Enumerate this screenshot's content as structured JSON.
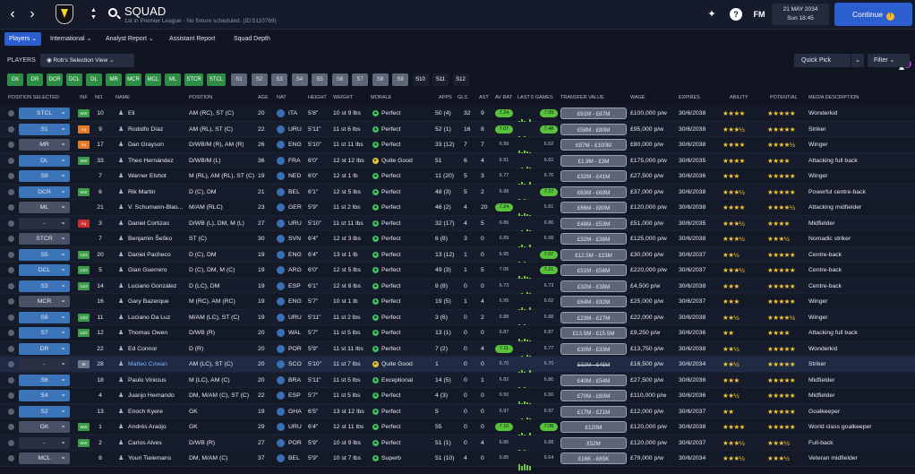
{
  "header": {
    "title": "SQUAD",
    "subtitle": "1st in Premier League - No fixture scheduled. (ID:5110769)",
    "date": "21 MAY 2034",
    "time": "Sun 18:45",
    "fm_label": "FM",
    "continue_label": "Continue",
    "continue_icon": "!"
  },
  "subnav": {
    "tabs": [
      "Players",
      "International",
      "Analyst Report",
      "Assistant Report",
      "Squad Depth"
    ],
    "notification_count": "7"
  },
  "players_bar": {
    "label": "PLAYERS",
    "view_label": "Rob's Selection View",
    "quick_pick": "Quick Pick",
    "filter": "Filter"
  },
  "position_chips": [
    "GK",
    "DR",
    "DCR",
    "DCL",
    "DL",
    "MR",
    "MCR",
    "MCL",
    "ML",
    "STCR",
    "STCL"
  ],
  "tactic_chips": [
    "S1",
    "S2",
    "S3",
    "S4",
    "S5",
    "S6",
    "S7",
    "S8",
    "S9",
    "S10",
    "S11",
    "S12"
  ],
  "columns": {
    "position_selected": "POSITION SELECTED",
    "inf": "INF",
    "no": "NO.",
    "name": "NAME",
    "position": "POSITION",
    "age": "AGE",
    "nat": "NAT",
    "height": "HEIGHT",
    "weight": "WEIGHT",
    "morale": "MORALE",
    "apps": "APPS",
    "gls": "GLS",
    "ast": "AST",
    "av_rat": "AV RAT",
    "last5": "LAST 5 GAMES",
    "transfer_value": "TRANSFER VALUE",
    "wage": "WAGE",
    "expires": "EXPIRES",
    "ability": "ABILITY",
    "potential": "POTENTIAL",
    "media": "MEDIA DESCRIPTION"
  },
  "players": [
    {
      "sel": "STCL",
      "selc": "blue",
      "inf": "Wnt",
      "infc": "wnt",
      "no": "10",
      "name": "Eli",
      "pos": "AM (RC), ST (C)",
      "age": "20",
      "nat": "ITA",
      "h": "5'8\"",
      "w": "10 st 9 lbs",
      "mor": "Perfect",
      "apps": "50 (4)",
      "gls": "32",
      "ast": "9",
      "avr": "7.24",
      "avrg": true,
      "l5": "7.09",
      "l5g": true,
      "tv": "£61M - £87M",
      "wage": "£100,000 p/w",
      "exp": "30/6/2038",
      "ab": "★★★★",
      "pot": "★★★★★"
    },
    {
      "sel": "S1",
      "selc": "blue",
      "inf": "Inj",
      "infc": "inj",
      "no": "9",
      "name": "Rodolfo Díaz",
      "pos": "AM (RL), ST (C)",
      "age": "22",
      "nat": "URU",
      "h": "5'11\"",
      "w": "11 st 6 lbs",
      "mor": "Perfect",
      "apps": "52 (1)",
      "gls": "16",
      "ast": "8",
      "avr": "7.07",
      "avrg": true,
      "l5": "7.48",
      "l5g": true,
      "tv": "£58M - £80M",
      "wage": "£95,000 p/w",
      "exp": "30/6/2038",
      "ab": "★★★½",
      "pot": "★★★★★"
    },
    {
      "sel": "MR",
      "selc": "grey",
      "inf": "Inj",
      "infc": "inj",
      "no": "17",
      "name": "Dan Grayson",
      "pos": "D/WB/M (R), AM (R)",
      "age": "26",
      "nat": "ENG",
      "h": "5'10\"",
      "w": "11 st 11 lbs",
      "mor": "Perfect",
      "apps": "33 (12)",
      "gls": "7",
      "ast": "7",
      "avr": "6.99",
      "avrg": false,
      "l5": "6.62",
      "l5g": false,
      "tv": "£87M - £100M",
      "wage": "£80,000 p/w",
      "exp": "30/6/2038",
      "ab": "★★★★",
      "pot": "★★★★½"
    },
    {
      "sel": "DL",
      "selc": "blue",
      "inf": "Wnt",
      "infc": "wnt",
      "no": "33",
      "name": "Theo Hernández",
      "pos": "D/WB/M (L)",
      "age": "36",
      "nat": "FRA",
      "h": "6'0\"",
      "w": "12 st 12 lbs",
      "mor": "Quite Good",
      "apps": "51",
      "gls": "6",
      "ast": "4",
      "avr": "6.91",
      "avrg": false,
      "l5": "6.62",
      "l5g": false,
      "tv": "£1.9M - £3M",
      "wage": "£175,000 p/w",
      "exp": "30/6/2035",
      "ab": "★★★★",
      "pot": "★★★★"
    },
    {
      "sel": "S9",
      "selc": "blue",
      "inf": "",
      "infc": "",
      "no": "7",
      "name": "Warner Elshot",
      "pos": "M (RL), AM (RL), ST (C)",
      "age": "19",
      "nat": "NED",
      "h": "6'0\"",
      "w": "12 st 1 lb",
      "mor": "Perfect",
      "apps": "11 (20)",
      "gls": "5",
      "ast": "3",
      "avr": "6.77",
      "avrg": false,
      "l5": "6.76",
      "l5g": false,
      "tv": "£32M - £41M",
      "wage": "£27,500 p/w",
      "exp": "30/6/2036",
      "ab": "★★★",
      "pot": "★★★★★"
    },
    {
      "sel": "DCR",
      "selc": "blue",
      "inf": "Wnt",
      "infc": "wnt",
      "no": "6",
      "name": "Rik Martin",
      "pos": "D (C), DM",
      "age": "21",
      "nat": "BEL",
      "h": "6'1\"",
      "w": "12 st 5 lbs",
      "mor": "Perfect",
      "apps": "48 (3)",
      "gls": "5",
      "ast": "2",
      "avr": "6.98",
      "avrg": false,
      "l5": "7.27",
      "l5g": true,
      "tv": "£63M - £69M",
      "wage": "£37,000 p/w",
      "exp": "30/6/2038",
      "ab": "★★★½",
      "pot": "★★★★★"
    },
    {
      "sel": "ML",
      "selc": "grey",
      "inf": "",
      "infc": "",
      "no": "21",
      "name": "V. Schumann-Blas...",
      "pos": "M/AM (RLC)",
      "age": "23",
      "nat": "GER",
      "h": "5'9\"",
      "w": "11 st 2 lbs",
      "mor": "Perfect",
      "apps": "46 (2)",
      "gls": "4",
      "ast": "20",
      "avr": "7.24",
      "avrg": true,
      "l5": "6.81",
      "l5g": false,
      "tv": "£66M - £80M",
      "wage": "£120,000 p/w",
      "exp": "30/6/2038",
      "ab": "★★★★",
      "pot": "★★★★½"
    },
    {
      "sel": "-",
      "selc": "none",
      "inf": "Inj",
      "infc": "sus",
      "no": "3",
      "name": "Daniel Cortizas",
      "pos": "D/WB (L), DM, M (L)",
      "age": "27",
      "nat": "URU",
      "h": "5'10\"",
      "w": "11 st 11 lbs",
      "mor": "Perfect",
      "apps": "32 (17)",
      "gls": "4",
      "ast": "5",
      "avr": "6.86",
      "avrg": false,
      "l5": "6.86",
      "l5g": false,
      "tv": "£48M - £53M",
      "wage": "£51,000 p/w",
      "exp": "30/6/2035",
      "ab": "★★★½",
      "pot": "★★★★"
    },
    {
      "sel": "STCR",
      "selc": "grey",
      "inf": "",
      "infc": "",
      "no": "7",
      "name": "Benjamin Šeško",
      "pos": "ST (C)",
      "age": "30",
      "nat": "SVN",
      "h": "6'4\"",
      "w": "12 st 3 lbs",
      "mor": "Perfect",
      "apps": "6 (8)",
      "gls": "3",
      "ast": "0",
      "avr": "6.89",
      "avrg": false,
      "l5": "6.98",
      "l5g": false,
      "tv": "£32M - £38M",
      "wage": "£125,000 p/w",
      "exp": "30/6/2038",
      "ab": "★★★½",
      "pot": "★★★½"
    },
    {
      "sel": "S5",
      "selc": "blue",
      "inf": "U23",
      "infc": "u",
      "no": "20",
      "name": "Daniel Pacheco",
      "pos": "D (C), DM",
      "age": "19",
      "nat": "ENG",
      "h": "6'4\"",
      "w": "13 st 1 lb",
      "mor": "Perfect",
      "apps": "13 (12)",
      "gls": "1",
      "ast": "0",
      "avr": "6.95",
      "avrg": false,
      "l5": "7.07",
      "l5g": true,
      "tv": "£12.5M - £15M",
      "wage": "£30,000 p/w",
      "exp": "30/6/2037",
      "ab": "★★½",
      "pot": "★★★★★"
    },
    {
      "sel": "DCL",
      "selc": "blue",
      "inf": "U23",
      "infc": "u",
      "no": "5",
      "name": "Gian Guerrero",
      "pos": "D (C), DM, M (C)",
      "age": "19",
      "nat": "ARG",
      "h": "6'0\"",
      "w": "12 st 5 lbs",
      "mor": "Perfect",
      "apps": "49 (3)",
      "gls": "1",
      "ast": "5",
      "avr": "7.06",
      "avrg": false,
      "l5": "7.21",
      "l5g": true,
      "tv": "£51M - £56M",
      "wage": "£220,000 p/w",
      "exp": "30/6/2037",
      "ab": "★★★½",
      "pot": "★★★★★"
    },
    {
      "sel": "S3",
      "selc": "blue",
      "inf": "U23",
      "infc": "u",
      "no": "14",
      "name": "Luciano González",
      "pos": "D (LC), DM",
      "age": "19",
      "nat": "ESP",
      "h": "6'1\"",
      "w": "12 st 8 lbs",
      "mor": "Perfect",
      "apps": "8 (8)",
      "gls": "0",
      "ast": "0",
      "avr": "6.73",
      "avrg": false,
      "l5": "6.73",
      "l5g": false,
      "tv": "£32M - £38M",
      "wage": "£4,500 p/w",
      "exp": "30/6/2038",
      "ab": "★★★",
      "pot": "★★★★★"
    },
    {
      "sel": "MCR",
      "selc": "grey",
      "inf": "",
      "infc": "",
      "no": "16",
      "name": "Gary Bazerque",
      "pos": "M (RC), AM (RC)",
      "age": "19",
      "nat": "ENG",
      "h": "5'7\"",
      "w": "10 st 1 lb",
      "mor": "Perfect",
      "apps": "19 (5)",
      "gls": "1",
      "ast": "4",
      "avr": "6.95",
      "avrg": false,
      "l5": "6.62",
      "l5g": false,
      "tv": "£64M - £92M",
      "wage": "£25,000 p/w",
      "exp": "30/6/2037",
      "ab": "★★★",
      "pot": "★★★★★"
    },
    {
      "sel": "S8",
      "selc": "blue",
      "inf": "U23",
      "infc": "u",
      "no": "11",
      "name": "Luciano Da Luz",
      "pos": "M/AM (LC), ST (C)",
      "age": "19",
      "nat": "URU",
      "h": "5'11\"",
      "w": "11 st 2 lbs",
      "mor": "Perfect",
      "apps": "3 (6)",
      "gls": "0",
      "ast": "2",
      "avr": "6.88",
      "avrg": false,
      "l5": "6.88",
      "l5g": false,
      "tv": "£23M - £27M",
      "wage": "£22,000 p/w",
      "exp": "30/6/2038",
      "ab": "★★½",
      "pot": "★★★★½"
    },
    {
      "sel": "S7",
      "selc": "blue",
      "inf": "U23",
      "infc": "u",
      "no": "12",
      "name": "Thomas Owen",
      "pos": "D/WB (R)",
      "age": "20",
      "nat": "WAL",
      "h": "5'7\"",
      "w": "11 st 5 lbs",
      "mor": "Perfect",
      "apps": "13 (1)",
      "gls": "0",
      "ast": "0",
      "avr": "6.87",
      "avrg": false,
      "l5": "6.87",
      "l5g": false,
      "tv": "£13.5M - £15.5M",
      "wage": "£9,250 p/w",
      "exp": "30/6/2036",
      "ab": "★★",
      "pot": "★★★★"
    },
    {
      "sel": "DR",
      "selc": "blue",
      "inf": "",
      "infc": "",
      "no": "22",
      "name": "Ed Connor",
      "pos": "D (R)",
      "age": "20",
      "nat": "POR",
      "h": "5'9\"",
      "w": "11 st 11 lbs",
      "mor": "Perfect",
      "apps": "7 (2)",
      "gls": "0",
      "ast": "4",
      "avr": "7.11",
      "avrg": true,
      "l5": "6.77",
      "l5g": false,
      "tv": "£30M - £33M",
      "wage": "£13,750 p/w",
      "exp": "30/6/2038",
      "ab": "★★½",
      "pot": "★★★★★"
    },
    {
      "sel": "-",
      "selc": "none",
      "inf": "St",
      "infc": "st",
      "no": "28",
      "name": "Matteo Cowan",
      "pos": "AM (LC), ST (C)",
      "age": "20",
      "nat": "SCO",
      "h": "5'10\"",
      "w": "11 st 7 lbs",
      "mor": "Quite Good",
      "apps": "1",
      "gls": "0",
      "ast": "0",
      "avr": "6.70",
      "avrg": false,
      "l5": "6.70",
      "l5g": false,
      "tv": "£32M - £45M",
      "wage": "£16,500 p/w",
      "exp": "30/6/2034",
      "ab": "★★½",
      "pot": "★★★★★",
      "link": true,
      "strike": true
    },
    {
      "sel": "S6",
      "selc": "blue",
      "inf": "",
      "infc": "",
      "no": "18",
      "name": "Paulo Vinicius",
      "pos": "M (LC), AM (C)",
      "age": "20",
      "nat": "BRA",
      "h": "5'11\"",
      "w": "11 st 5 lbs",
      "mor": "Exceptional",
      "apps": "14 (5)",
      "gls": "0",
      "ast": "1",
      "avr": "6.82",
      "avrg": false,
      "l5": "6.86",
      "l5g": false,
      "tv": "£40M - £54M",
      "wage": "£27,500 p/w",
      "exp": "30/6/2036",
      "ab": "★★★",
      "pot": "★★★★★"
    },
    {
      "sel": "S4",
      "selc": "blue",
      "inf": "",
      "infc": "",
      "no": "4",
      "name": "Juanjo Hernando",
      "pos": "DM, M/AM (C), ST (C)",
      "age": "22",
      "nat": "ESP",
      "h": "5'7\"",
      "w": "11 st 5 lbs",
      "mor": "Perfect",
      "apps": "4 (3)",
      "gls": "0",
      "ast": "0",
      "avr": "6.50",
      "avrg": false,
      "l5": "6.56",
      "l5g": false,
      "tv": "£70M - £80M",
      "wage": "£110,000 p/w",
      "exp": "30/6/2036",
      "ab": "★★½",
      "pot": "★★★★★"
    },
    {
      "sel": "S2",
      "selc": "blue",
      "inf": "",
      "infc": "",
      "no": "13",
      "name": "Enoch Kyere",
      "pos": "GK",
      "age": "19",
      "nat": "GHA",
      "h": "6'5\"",
      "w": "13 st 12 lbs",
      "mor": "Perfect",
      "apps": "5",
      "gls": "0",
      "ast": "0",
      "avr": "6.97",
      "avrg": false,
      "l5": "6.97",
      "l5g": false,
      "tv": "£17M - £21M",
      "wage": "£12,000 p/w",
      "exp": "30/6/2037",
      "ab": "★★",
      "pot": "★★★★★"
    },
    {
      "sel": "GK",
      "selc": "grey",
      "inf": "Wnt",
      "infc": "wnt",
      "no": "1",
      "name": "Andrés Araújo",
      "pos": "GK",
      "age": "29",
      "nat": "URU",
      "h": "6'4\"",
      "w": "12 st 11 lbs",
      "mor": "Perfect",
      "apps": "55",
      "gls": "0",
      "ast": "0",
      "avr": "7.10",
      "avrg": true,
      "l5": "7.06",
      "l5g": true,
      "tv": "£120M",
      "wage": "£120,000 p/w",
      "exp": "30/6/2038",
      "ab": "★★★★",
      "pot": "★★★★★"
    },
    {
      "sel": "-",
      "selc": "none",
      "inf": "Wnt",
      "infc": "wnt",
      "no": "2",
      "name": "Carlos Alves",
      "pos": "D/WB (R)",
      "age": "27",
      "nat": "POR",
      "h": "5'9\"",
      "w": "10 st 9 lbs",
      "mor": "Perfect",
      "apps": "51 (1)",
      "gls": "0",
      "ast": "4",
      "avr": "6.86",
      "avrg": false,
      "l5": "6.88",
      "l5g": false,
      "tv": "£52M",
      "wage": "£120,000 p/w",
      "exp": "30/6/2037",
      "ab": "★★★½",
      "pot": "★★★½"
    },
    {
      "sel": "MCL",
      "selc": "grey",
      "inf": "",
      "infc": "",
      "no": "8",
      "name": "Youri Tielemans",
      "pos": "DM, M/AM (C)",
      "age": "37",
      "nat": "BEL",
      "h": "5'9\"",
      "w": "10 st 7 lbs",
      "mor": "Superb",
      "apps": "51 (10)",
      "gls": "4",
      "ast": "0",
      "avr": "6.85",
      "avrg": false,
      "l5": "6.64",
      "l5g": false,
      "tv": "£16K - £65K",
      "wage": "£79,000 p/w",
      "exp": "30/6/2034",
      "ab": "★★★½",
      "pot": "★★★½"
    }
  ],
  "media": [
    "Wonderkid",
    "Striker",
    "Winger",
    "Attacking full back",
    "Winger",
    "Powerful centre-back",
    "Attacking midfielder",
    "Midfielder",
    "Nomadic striker",
    "Centre-back",
    "Centre-back",
    "Centre-back",
    "Winger",
    "Winger",
    "Attacking full back",
    "Wonderkid",
    "Striker",
    "Midfielder",
    "Midfielder",
    "Goalkeeper",
    "World class goalkeeper",
    "Full-back",
    "Veteran midfielder"
  ],
  "colors": {
    "accent": "#2d5ecf",
    "positive": "#58c33a",
    "star": "#f2c531"
  }
}
